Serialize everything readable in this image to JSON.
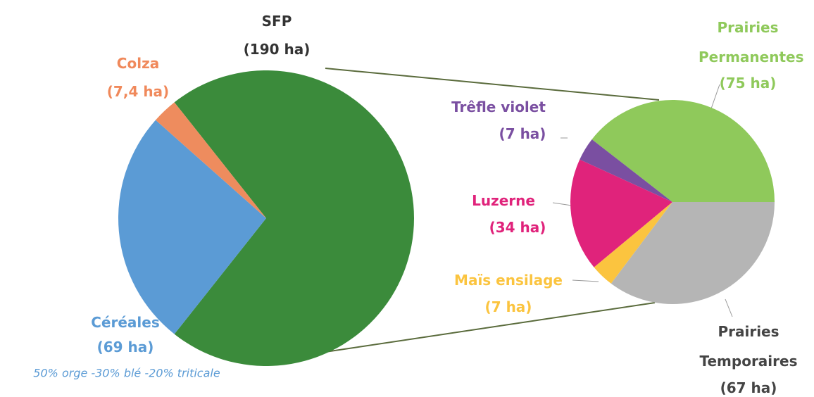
{
  "chart_data": [
    {
      "type": "pie",
      "categories": [
        "SFP",
        "Céréales",
        "Colza"
      ],
      "values": [
        190,
        69,
        7.4
      ],
      "value_labels": [
        "(190 ha)",
        "(69 ha)",
        "(7,4 ha)"
      ],
      "colors": [
        "#3b8b3b",
        "#5b9bd5",
        "#ee8c5e"
      ],
      "label_colors": [
        "#333333",
        "#5b9bd5",
        "#f0895b"
      ],
      "annotation": "50% orge -30% blé -20% triticale"
    },
    {
      "type": "pie",
      "categories": [
        "Prairies Permanentes",
        "Trêfle violet",
        "Luzerne",
        "Maïs ensilage",
        "Prairies Temporaires"
      ],
      "values": [
        75,
        7,
        34,
        7,
        67
      ],
      "value_labels": [
        "(75 ha)",
        "(7 ha)",
        "(34 ha)",
        "(7 ha)",
        "(67 ha)"
      ],
      "colors": [
        "#8fc95b",
        "#7a4fa1",
        "#e0237b",
        "#fbc43f",
        "#b5b5b5"
      ],
      "label_colors": [
        "#8fc95b",
        "#7a4fa1",
        "#e0237b",
        "#fbc43f",
        "#444444"
      ]
    }
  ]
}
